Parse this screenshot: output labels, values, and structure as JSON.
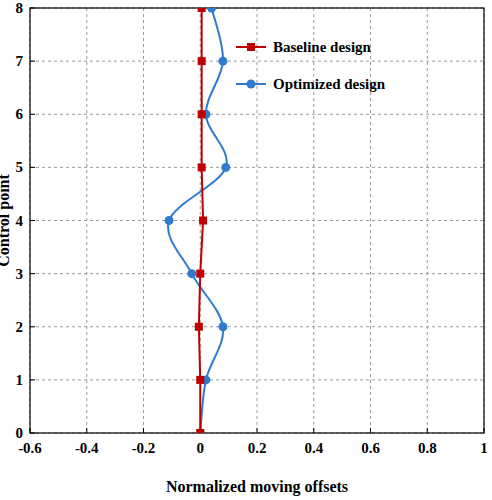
{
  "chart_data": {
    "type": "line",
    "x_label": "Normalized moving offsets",
    "y_label": "Control point",
    "xlim": [
      -0.6,
      1
    ],
    "xticks": [
      -0.6,
      -0.4,
      -0.2,
      0,
      0.2,
      0.4,
      0.6,
      0.8,
      1
    ],
    "ylim": [
      0,
      8
    ],
    "yticks": [
      0,
      1,
      2,
      3,
      4,
      5,
      6,
      7,
      8
    ],
    "grid": true,
    "legend": "upper right",
    "series": [
      {
        "name": "Baseline design",
        "color": "#c00000",
        "marker": "square",
        "line_style": "solid",
        "x": [
          0,
          0.0,
          -0.005,
          0.0,
          0.01,
          0.005,
          0.005,
          0.005,
          0.005
        ],
        "values": [
          0,
          1,
          2,
          3,
          4,
          5,
          6,
          7,
          8
        ]
      },
      {
        "name": "Optimized design",
        "color": "#2e7bd0",
        "marker": "circle",
        "line_style": "smooth",
        "x": [
          0,
          0.02,
          0.08,
          -0.03,
          -0.11,
          0.09,
          0.02,
          0.08,
          0.04
        ],
        "values": [
          0,
          1,
          2,
          3,
          4,
          5,
          6,
          7,
          8
        ]
      }
    ]
  }
}
